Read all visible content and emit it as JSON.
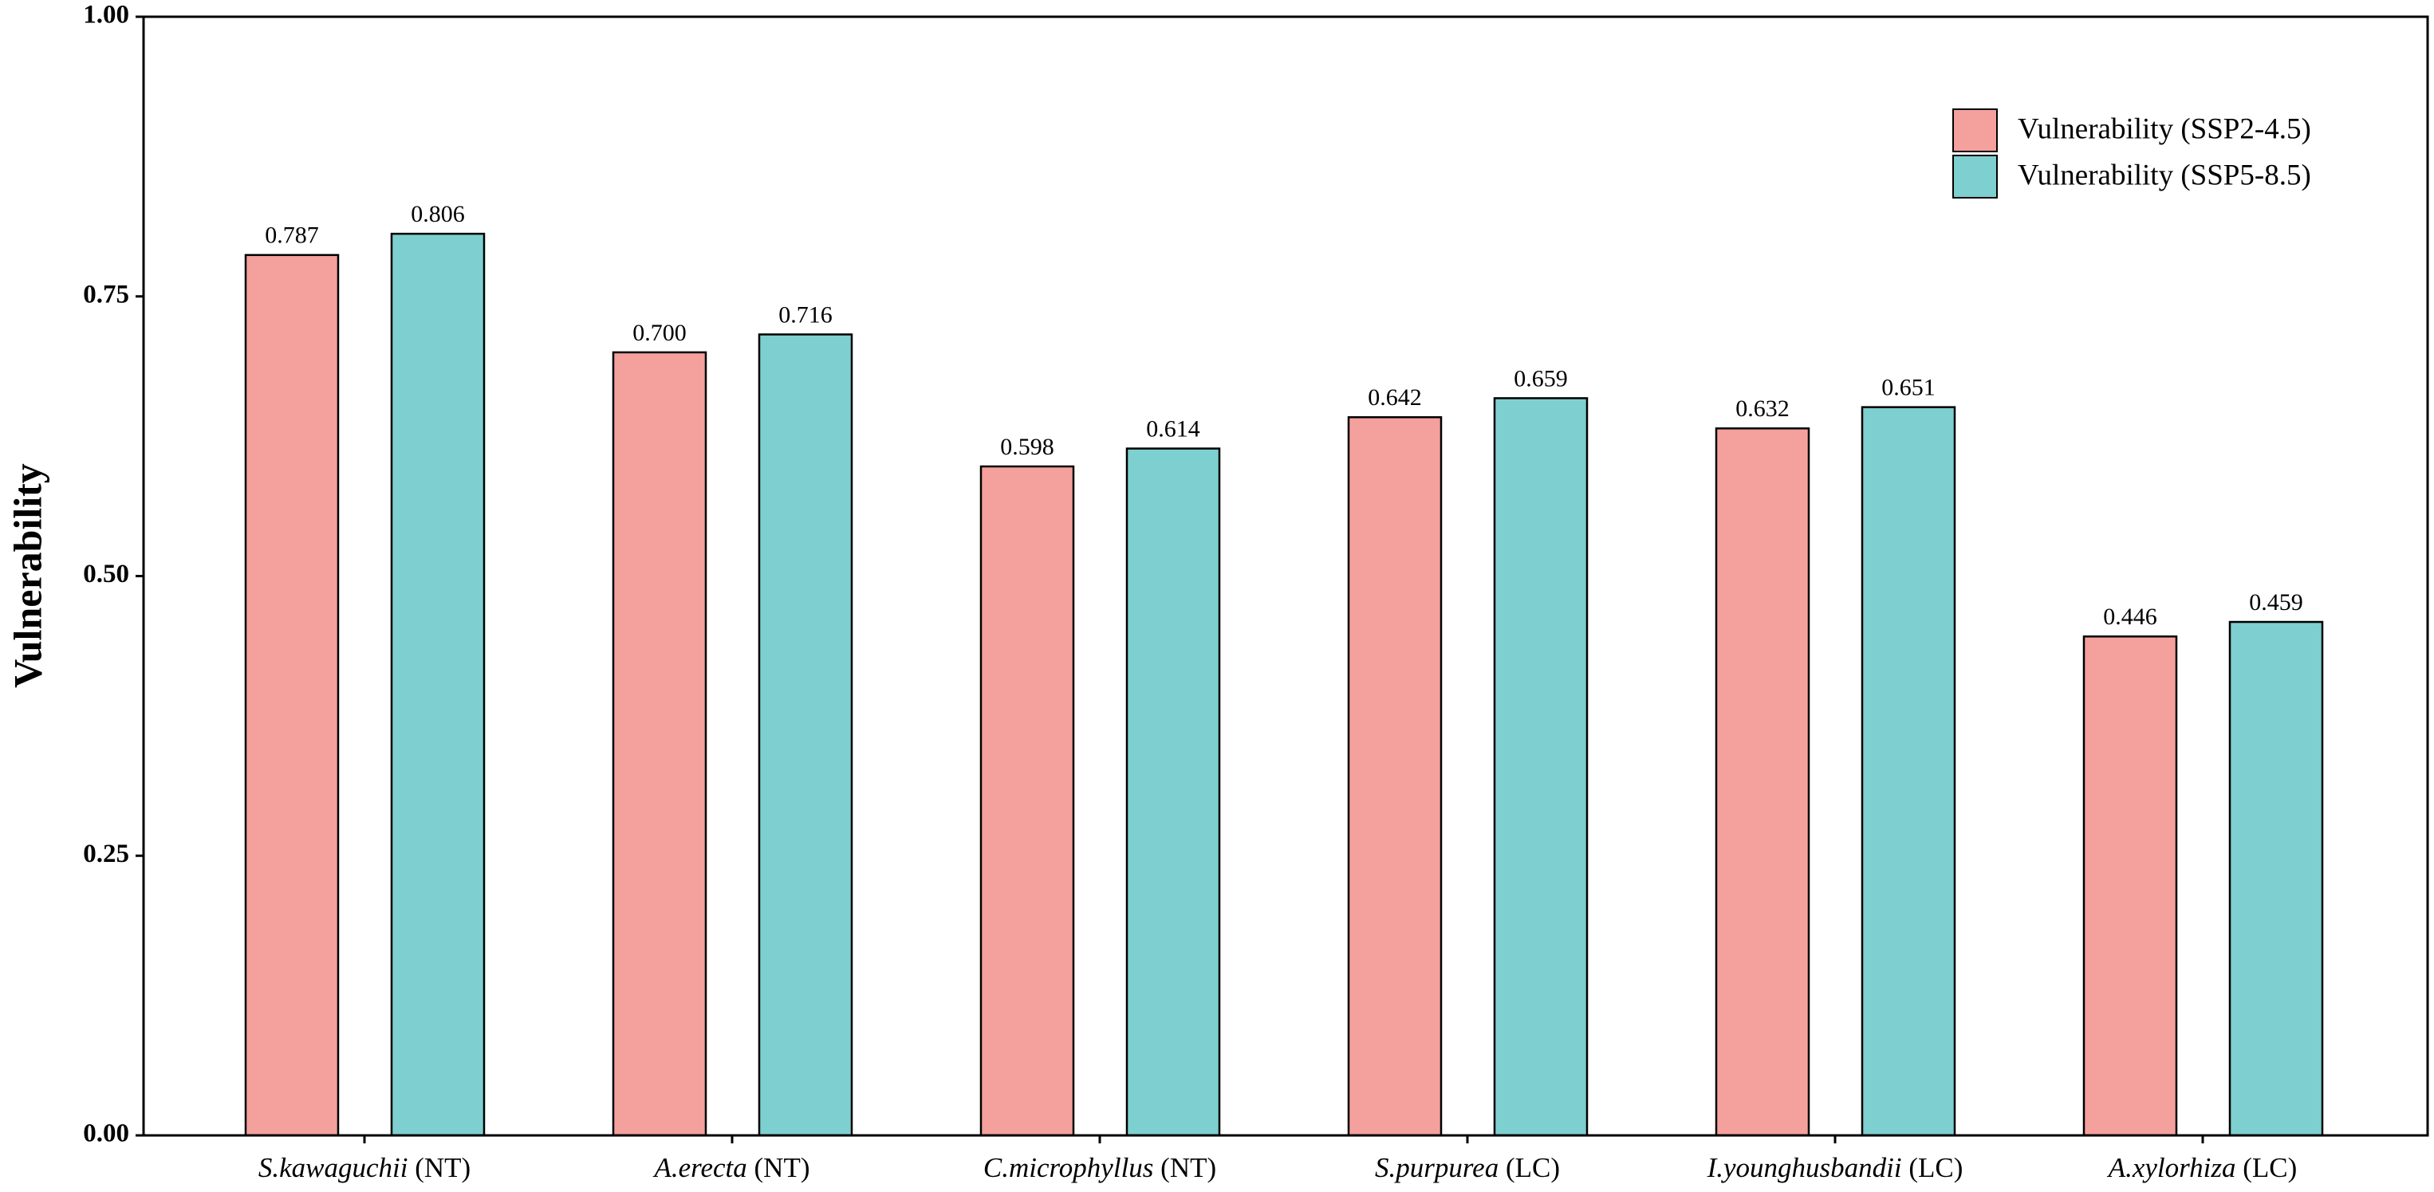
{
  "chart_data": {
    "type": "bar",
    "y_label": "Vulnerability",
    "categories": [
      "S.kawaguchii (NT)",
      "A.erecta (NT)",
      "C.microphyllus (NT)",
      "S.purpurea (LC)",
      "I.younghusbandii (LC)",
      "A.xylorhiza (LC)"
    ],
    "series": [
      {
        "name": "Vulnerability (SSP2-4.5)",
        "color": "#f4a09c",
        "values": [
          0.787,
          0.7,
          0.598,
          0.642,
          0.632,
          0.446
        ],
        "value_labels": [
          "0.787",
          "0.700",
          "0.598",
          "0.642",
          "0.632",
          "0.446"
        ]
      },
      {
        "name": "Vulnerability (SSP5-8.5)",
        "color": "#7ecfcf",
        "values": [
          0.806,
          0.716,
          0.614,
          0.659,
          0.651,
          0.459
        ],
        "value_labels": [
          "0.806",
          "0.716",
          "0.614",
          "0.659",
          "0.651",
          "0.459"
        ]
      }
    ],
    "ylim": [
      0,
      1
    ],
    "yticks": [
      {
        "value": 0,
        "label": "0.00"
      },
      {
        "value": 0.25,
        "label": "0.25"
      },
      {
        "value": 0.5,
        "label": "0.50"
      },
      {
        "value": 0.75,
        "label": "0.75"
      },
      {
        "value": 1,
        "label": "1.00"
      }
    ],
    "legend": "upper right"
  }
}
